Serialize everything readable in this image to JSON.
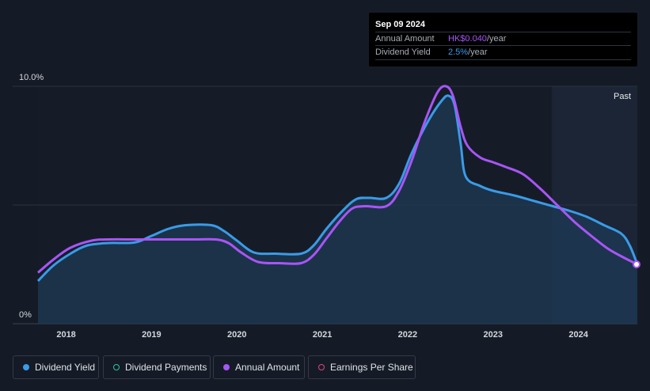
{
  "tooltip": {
    "date": "Sep 09 2024",
    "rows": [
      {
        "label": "Annual Amount",
        "value": "HK$0.040",
        "unit": "/year",
        "color": "#a855f7"
      },
      {
        "label": "Dividend Yield",
        "value": "2.5%",
        "unit": "/year",
        "color": "#3a9be8"
      }
    ]
  },
  "chart_data": {
    "type": "line",
    "y_tick_labels": [
      "10.0%",
      "0%"
    ],
    "ylim": [
      0,
      10
    ],
    "xlim": [
      2017.67,
      2024.69
    ],
    "x_tick_labels": [
      "2018",
      "2019",
      "2020",
      "2021",
      "2022",
      "2023",
      "2024"
    ],
    "past_label": "Past",
    "past_start": 2023.69,
    "grid": "horizontal",
    "series": [
      {
        "name": "Dividend Yield",
        "color": "#3a9be8",
        "fill": true,
        "points": [
          [
            2017.67,
            1.8
          ],
          [
            2017.85,
            2.45
          ],
          [
            2018.05,
            2.95
          ],
          [
            2018.25,
            3.3
          ],
          [
            2018.5,
            3.4
          ],
          [
            2018.8,
            3.42
          ],
          [
            2019.0,
            3.7
          ],
          [
            2019.2,
            4.0
          ],
          [
            2019.4,
            4.15
          ],
          [
            2019.7,
            4.15
          ],
          [
            2019.85,
            3.9
          ],
          [
            2020.0,
            3.5
          ],
          [
            2020.2,
            3.0
          ],
          [
            2020.45,
            2.95
          ],
          [
            2020.75,
            2.95
          ],
          [
            2020.9,
            3.3
          ],
          [
            2021.05,
            4.0
          ],
          [
            2021.25,
            4.8
          ],
          [
            2021.4,
            5.25
          ],
          [
            2021.55,
            5.3
          ],
          [
            2021.75,
            5.3
          ],
          [
            2021.9,
            5.9
          ],
          [
            2022.05,
            7.2
          ],
          [
            2022.25,
            8.6
          ],
          [
            2022.4,
            9.4
          ],
          [
            2022.48,
            9.6
          ],
          [
            2022.55,
            9.2
          ],
          [
            2022.62,
            7.6
          ],
          [
            2022.68,
            6.2
          ],
          [
            2022.85,
            5.8
          ],
          [
            2023.0,
            5.6
          ],
          [
            2023.25,
            5.4
          ],
          [
            2023.5,
            5.15
          ],
          [
            2023.7,
            4.95
          ],
          [
            2023.9,
            4.75
          ],
          [
            2024.1,
            4.5
          ],
          [
            2024.3,
            4.15
          ],
          [
            2024.5,
            3.8
          ],
          [
            2024.6,
            3.3
          ],
          [
            2024.69,
            2.5
          ]
        ]
      },
      {
        "name": "Annual Amount",
        "color": "#a855f7",
        "fill": false,
        "points": [
          [
            2017.67,
            2.15
          ],
          [
            2017.85,
            2.7
          ],
          [
            2018.05,
            3.2
          ],
          [
            2018.3,
            3.5
          ],
          [
            2018.5,
            3.55
          ],
          [
            2018.8,
            3.55
          ],
          [
            2019.2,
            3.55
          ],
          [
            2019.5,
            3.55
          ],
          [
            2019.75,
            3.55
          ],
          [
            2019.9,
            3.4
          ],
          [
            2020.05,
            3.0
          ],
          [
            2020.25,
            2.6
          ],
          [
            2020.5,
            2.55
          ],
          [
            2020.75,
            2.55
          ],
          [
            2020.9,
            2.9
          ],
          [
            2021.05,
            3.6
          ],
          [
            2021.2,
            4.3
          ],
          [
            2021.35,
            4.85
          ],
          [
            2021.5,
            4.95
          ],
          [
            2021.75,
            4.95
          ],
          [
            2021.9,
            5.6
          ],
          [
            2022.05,
            6.9
          ],
          [
            2022.2,
            8.5
          ],
          [
            2022.35,
            9.75
          ],
          [
            2022.45,
            10.0
          ],
          [
            2022.53,
            9.6
          ],
          [
            2022.62,
            8.3
          ],
          [
            2022.7,
            7.5
          ],
          [
            2022.85,
            7.0
          ],
          [
            2023.0,
            6.8
          ],
          [
            2023.15,
            6.6
          ],
          [
            2023.35,
            6.3
          ],
          [
            2023.55,
            5.7
          ],
          [
            2023.75,
            5.0
          ],
          [
            2023.95,
            4.3
          ],
          [
            2024.15,
            3.7
          ],
          [
            2024.35,
            3.15
          ],
          [
            2024.55,
            2.75
          ],
          [
            2024.69,
            2.5
          ]
        ]
      }
    ]
  },
  "legend": [
    {
      "label": "Dividend Yield",
      "color": "#3a9be8",
      "filled": true
    },
    {
      "label": "Dividend Payments",
      "color": "#2ec4a6",
      "filled": false
    },
    {
      "label": "Annual Amount",
      "color": "#a855f7",
      "filled": true
    },
    {
      "label": "Earnings Per Share",
      "color": "#e0457b",
      "filled": false
    }
  ]
}
